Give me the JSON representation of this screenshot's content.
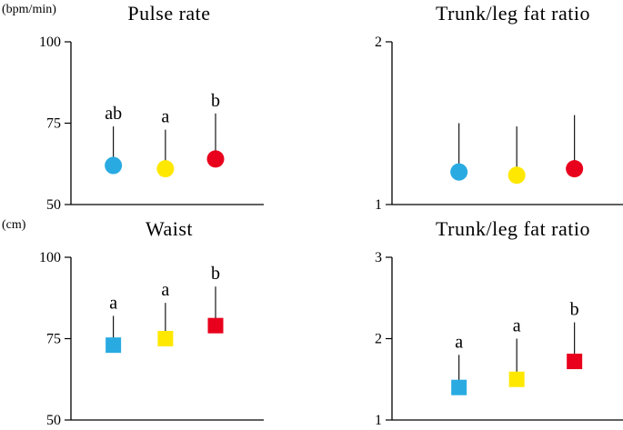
{
  "chart_data": [
    {
      "id": "pulse-rate",
      "type": "scatter",
      "title": "Pulse rate",
      "unit_label": "(bpm/min)",
      "marker": "circle",
      "ylim": [
        50,
        100
      ],
      "yticks": [
        50,
        75,
        100
      ],
      "grid": false,
      "legend": "none",
      "error_bars": "upper",
      "series": [
        {
          "name": "blue",
          "color": "#29abe2",
          "value": 62,
          "error_top": 74,
          "sig_label": "ab"
        },
        {
          "name": "yellow",
          "color": "#ffe800",
          "value": 61,
          "error_top": 73,
          "sig_label": "a"
        },
        {
          "name": "red",
          "color": "#e8001c",
          "value": 64,
          "error_top": 78,
          "sig_label": "b"
        }
      ]
    },
    {
      "id": "trunk-leg-fat-ratio-top",
      "type": "scatter",
      "title": "Trunk/leg fat ratio",
      "unit_label": "",
      "marker": "circle",
      "ylim": [
        1,
        2
      ],
      "yticks": [
        1,
        2
      ],
      "grid": false,
      "legend": "none",
      "error_bars": "upper",
      "series": [
        {
          "name": "blue",
          "color": "#29abe2",
          "value": 1.2,
          "error_top": 1.5,
          "sig_label": ""
        },
        {
          "name": "yellow",
          "color": "#ffe800",
          "value": 1.18,
          "error_top": 1.48,
          "sig_label": ""
        },
        {
          "name": "red",
          "color": "#e8001c",
          "value": 1.22,
          "error_top": 1.55,
          "sig_label": ""
        }
      ]
    },
    {
      "id": "waist",
      "type": "scatter",
      "title": "Waist",
      "unit_label": "(cm)",
      "marker": "square",
      "ylim": [
        50,
        100
      ],
      "yticks": [
        50,
        75,
        100
      ],
      "grid": false,
      "legend": "none",
      "error_bars": "upper",
      "series": [
        {
          "name": "blue",
          "color": "#29abe2",
          "value": 73,
          "error_top": 82,
          "sig_label": "a"
        },
        {
          "name": "yellow",
          "color": "#ffe800",
          "value": 75,
          "error_top": 86,
          "sig_label": "a"
        },
        {
          "name": "red",
          "color": "#e8001c",
          "value": 79,
          "error_top": 91,
          "sig_label": "b"
        }
      ]
    },
    {
      "id": "trunk-leg-fat-ratio-bottom",
      "type": "scatter",
      "title": "Trunk/leg fat ratio",
      "unit_label": "",
      "marker": "square",
      "ylim": [
        1,
        3
      ],
      "yticks": [
        1,
        2,
        3
      ],
      "grid": false,
      "legend": "none",
      "error_bars": "upper",
      "series": [
        {
          "name": "blue",
          "color": "#29abe2",
          "value": 1.4,
          "error_top": 1.8,
          "sig_label": "a"
        },
        {
          "name": "yellow",
          "color": "#ffe800",
          "value": 1.5,
          "error_top": 2.0,
          "sig_label": "a"
        },
        {
          "name": "red",
          "color": "#e8001c",
          "value": 1.72,
          "error_top": 2.2,
          "sig_label": "b"
        }
      ]
    }
  ]
}
